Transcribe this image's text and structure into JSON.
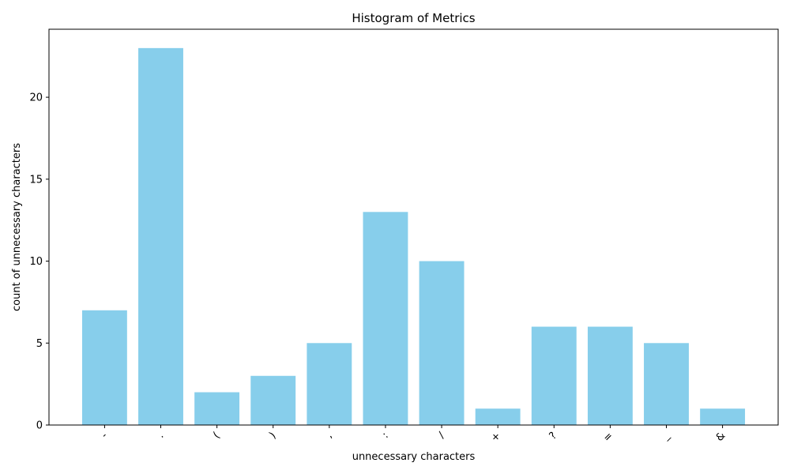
{
  "chart_data": {
    "type": "bar",
    "title": "Histogram of Metrics",
    "xlabel": "unnecessary characters",
    "ylabel": "count of unnecessary characters",
    "categories": [
      "-",
      ".",
      "(",
      ")",
      ",",
      ":",
      "/",
      "+",
      "?",
      "=",
      "_",
      "&"
    ],
    "values": [
      7,
      23,
      2,
      3,
      5,
      13,
      10,
      1,
      6,
      6,
      5,
      1
    ],
    "ylim": [
      0,
      24.15
    ],
    "yticks": [
      0,
      5,
      10,
      15,
      20
    ],
    "bar_color": "#87ceeb",
    "grid": false,
    "legend": "none"
  }
}
